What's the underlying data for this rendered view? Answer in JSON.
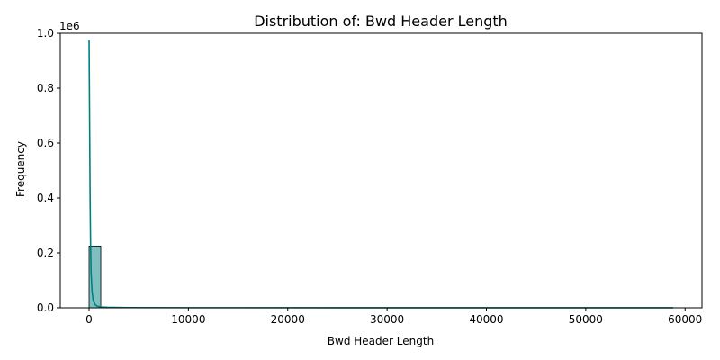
{
  "chart_data": {
    "type": "bar",
    "title": "Distribution of: Bwd Header Length",
    "xlabel": "Bwd Header Length",
    "ylabel": "Frequency",
    "y_offset_text": "1e6",
    "xlim": [
      -2900,
      61700
    ],
    "ylim": [
      0,
      1000000
    ],
    "x_ticks": [
      0,
      10000,
      20000,
      30000,
      40000,
      50000,
      60000
    ],
    "x_tick_labels": [
      "0",
      "10000",
      "20000",
      "30000",
      "40000",
      "50000",
      "60000"
    ],
    "y_ticks": [
      0,
      200000,
      400000,
      600000,
      800000,
      1000000
    ],
    "y_tick_labels": [
      "0.0",
      "0.2",
      "0.4",
      "0.6",
      "0.8",
      "1.0"
    ],
    "bins": [
      {
        "x0": 0,
        "x1": 1180,
        "count": 225000
      },
      {
        "x0": 1180,
        "x1": 2360,
        "count": 2000
      }
    ],
    "kde": {
      "x": [
        0,
        50,
        100,
        150,
        200,
        300,
        400,
        600,
        800,
        1200,
        2000,
        4000,
        10000,
        30000,
        58800
      ],
      "y": [
        975000,
        700000,
        420000,
        240000,
        130000,
        60000,
        30000,
        12000,
        6000,
        3000,
        1500,
        800,
        400,
        300,
        250
      ]
    },
    "grid": false,
    "colors": {
      "bar_fill": "#7fbfbf",
      "bar_edge": "#000000",
      "kde_line": "#008080"
    }
  }
}
